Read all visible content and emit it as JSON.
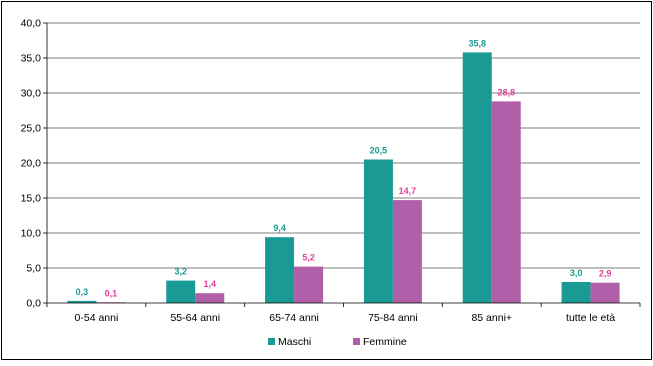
{
  "chart_data": {
    "type": "bar",
    "categories": [
      "0-54 anni",
      "55-64 anni",
      "65-74 anni",
      "75-84 anni",
      "85 anni+",
      "tutte le età"
    ],
    "series": [
      {
        "name": "Maschi",
        "values": [
          0.3,
          3.2,
          9.4,
          20.5,
          35.8,
          3.0
        ],
        "labels": [
          "0,3",
          "3,2",
          "9,4",
          "20,5",
          "35,8",
          "3,0"
        ],
        "color": "#1a9a94",
        "label_color": "#1a9a94"
      },
      {
        "name": "Femmine",
        "values": [
          0.1,
          1.4,
          5.2,
          14.7,
          28.8,
          2.9
        ],
        "labels": [
          "0,1",
          "1,4",
          "5,2",
          "14,7",
          "28,8",
          "2,9"
        ],
        "color": "#b060a8",
        "label_color": "#e0409a"
      }
    ],
    "ylim": [
      0,
      40
    ],
    "yticks": [
      0,
      5,
      10,
      15,
      20,
      25,
      30,
      35,
      40
    ],
    "ytick_labels": [
      "0,0",
      "5,0",
      "10,0",
      "15,0",
      "20,0",
      "25,0",
      "30,0",
      "35,0",
      "40,0"
    ],
    "title": "",
    "xlabel": "",
    "ylabel": "",
    "grid": true,
    "legend_position": "bottom"
  }
}
